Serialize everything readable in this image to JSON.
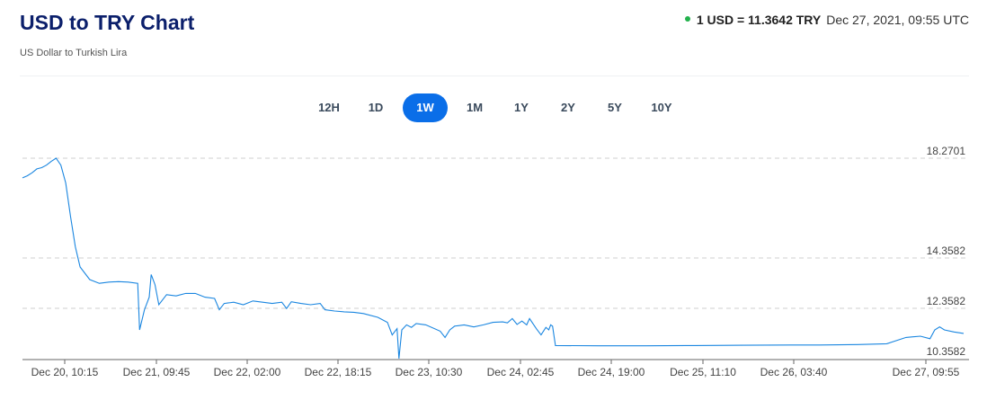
{
  "header": {
    "title": "USD to TRY Chart",
    "subtitle": "US Dollar to Turkish Lira",
    "rate_label": "1 USD = 11.3642 TRY",
    "rate_time": "Dec 27, 2021, 09:55 UTC",
    "status_color": "#22b14c"
  },
  "tabs": [
    {
      "label": "12H",
      "active": false
    },
    {
      "label": "1D",
      "active": false
    },
    {
      "label": "1W",
      "active": true
    },
    {
      "label": "1M",
      "active": false
    },
    {
      "label": "1Y",
      "active": false
    },
    {
      "label": "2Y",
      "active": false
    },
    {
      "label": "5Y",
      "active": false
    },
    {
      "label": "10Y",
      "active": false
    }
  ],
  "chart_data": {
    "type": "line",
    "title": "USD to TRY Chart",
    "line_color": "#1a86e0",
    "y_ticks": [
      "18.2701",
      "14.3582",
      "12.3582",
      "10.3582"
    ],
    "x_ticks": [
      "Dec 20, 10:15",
      "Dec 21, 09:45",
      "Dec 22, 02:00",
      "Dec 22, 18:15",
      "Dec 23, 10:30",
      "Dec 24, 02:45",
      "Dec 24, 19:00",
      "Dec 25, 11:10",
      "Dec 26, 03:40",
      "Dec 27, 09:55"
    ],
    "ylim": [
      10.3582,
      18.2701
    ],
    "grid": "horizontal dashed",
    "series": [
      {
        "values": [
          [
            0.0,
            17.5
          ],
          [
            0.05,
            17.58
          ],
          [
            0.1,
            17.7
          ],
          [
            0.15,
            17.85
          ],
          [
            0.2,
            17.9
          ],
          [
            0.25,
            18.0
          ],
          [
            0.3,
            18.15
          ],
          [
            0.35,
            18.27
          ],
          [
            0.4,
            18.0
          ],
          [
            0.45,
            17.3
          ],
          [
            0.5,
            16.0
          ],
          [
            0.55,
            14.8
          ],
          [
            0.6,
            14.0
          ],
          [
            0.7,
            13.5
          ],
          [
            0.8,
            13.35
          ],
          [
            0.9,
            13.4
          ],
          [
            1.0,
            13.42
          ],
          [
            1.1,
            13.4
          ],
          [
            1.2,
            13.35
          ],
          [
            1.22,
            11.5
          ],
          [
            1.27,
            12.3
          ],
          [
            1.32,
            12.8
          ],
          [
            1.34,
            13.7
          ],
          [
            1.38,
            13.3
          ],
          [
            1.42,
            12.5
          ],
          [
            1.5,
            12.9
          ],
          [
            1.6,
            12.85
          ],
          [
            1.7,
            12.95
          ],
          [
            1.8,
            12.95
          ],
          [
            1.9,
            12.8
          ],
          [
            2.0,
            12.75
          ],
          [
            2.05,
            12.3
          ],
          [
            2.1,
            12.55
          ],
          [
            2.2,
            12.6
          ],
          [
            2.3,
            12.5
          ],
          [
            2.4,
            12.65
          ],
          [
            2.5,
            12.6
          ],
          [
            2.6,
            12.55
          ],
          [
            2.7,
            12.6
          ],
          [
            2.75,
            12.35
          ],
          [
            2.8,
            12.62
          ],
          [
            2.9,
            12.55
          ],
          [
            3.0,
            12.5
          ],
          [
            3.1,
            12.55
          ],
          [
            3.15,
            12.3
          ],
          [
            3.25,
            12.25
          ],
          [
            3.35,
            12.22
          ],
          [
            3.45,
            12.2
          ],
          [
            3.55,
            12.15
          ],
          [
            3.7,
            12.0
          ],
          [
            3.8,
            11.8
          ],
          [
            3.85,
            11.3
          ],
          [
            3.9,
            11.55
          ],
          [
            3.92,
            10.36
          ],
          [
            3.95,
            11.5
          ],
          [
            4.0,
            11.7
          ],
          [
            4.05,
            11.6
          ],
          [
            4.1,
            11.75
          ],
          [
            4.2,
            11.7
          ],
          [
            4.35,
            11.45
          ],
          [
            4.4,
            11.2
          ],
          [
            4.45,
            11.5
          ],
          [
            4.5,
            11.65
          ],
          [
            4.6,
            11.7
          ],
          [
            4.7,
            11.62
          ],
          [
            4.8,
            11.7
          ],
          [
            4.9,
            11.8
          ],
          [
            5.0,
            11.82
          ],
          [
            5.05,
            11.78
          ],
          [
            5.1,
            11.95
          ],
          [
            5.15,
            11.72
          ],
          [
            5.2,
            11.85
          ],
          [
            5.25,
            11.7
          ],
          [
            5.28,
            11.95
          ],
          [
            5.35,
            11.55
          ],
          [
            5.4,
            11.3
          ],
          [
            5.45,
            11.6
          ],
          [
            5.48,
            11.5
          ],
          [
            5.5,
            11.7
          ],
          [
            5.52,
            11.65
          ],
          [
            5.55,
            10.88
          ],
          [
            6.0,
            10.87
          ],
          [
            6.5,
            10.87
          ],
          [
            7.0,
            10.88
          ],
          [
            7.5,
            10.89
          ],
          [
            8.0,
            10.9
          ],
          [
            8.3,
            10.9
          ],
          [
            8.7,
            10.92
          ],
          [
            9.0,
            10.95
          ],
          [
            9.2,
            11.2
          ],
          [
            9.35,
            11.25
          ],
          [
            9.45,
            11.15
          ],
          [
            9.5,
            11.5
          ],
          [
            9.55,
            11.62
          ],
          [
            9.6,
            11.5
          ],
          [
            9.7,
            11.42
          ],
          [
            9.8,
            11.36
          ]
        ]
      }
    ]
  }
}
